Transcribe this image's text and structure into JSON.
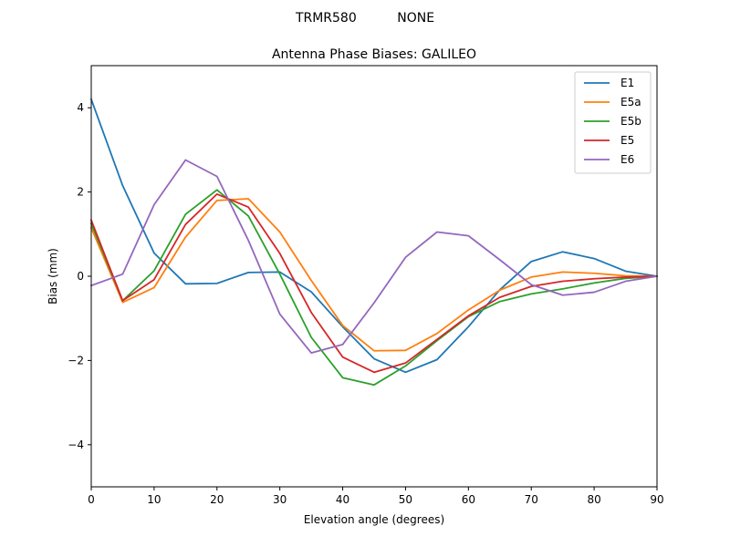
{
  "figure": {
    "suptitle": "TRMR580          NONE"
  },
  "chart_data": {
    "type": "line",
    "title": "Antenna Phase Biases: GALILEO",
    "xlabel": "Elevation angle (degrees)",
    "ylabel": "Bias (mm)",
    "xlim": [
      0,
      90
    ],
    "ylim": [
      -5,
      5
    ],
    "xticks": [
      0,
      10,
      20,
      30,
      40,
      50,
      60,
      70,
      80,
      90
    ],
    "yticks": [
      4,
      2,
      0,
      -2,
      -4
    ],
    "ytick_labels": [
      "4",
      "2",
      "0",
      "−2",
      "−4"
    ],
    "grid": false,
    "legend_placement": "top-right",
    "x": [
      0,
      5,
      10,
      15,
      20,
      25,
      30,
      35,
      40,
      45,
      50,
      55,
      60,
      65,
      70,
      75,
      80,
      85,
      90
    ],
    "series": [
      {
        "name": "E1",
        "color": "#1f77b4",
        "values": [
          4.2,
          2.15,
          0.55,
          -0.18,
          -0.17,
          0.09,
          0.1,
          -0.37,
          -1.2,
          -1.96,
          -2.28,
          -1.98,
          -1.2,
          -0.32,
          0.35,
          0.58,
          0.42,
          0.12,
          0.0
        ]
      },
      {
        "name": "E5a",
        "color": "#ff7f0e",
        "values": [
          1.15,
          -0.62,
          -0.27,
          0.93,
          1.8,
          1.84,
          1.05,
          -0.1,
          -1.17,
          -1.77,
          -1.76,
          -1.36,
          -0.8,
          -0.33,
          -0.02,
          0.1,
          0.07,
          0.01,
          0.0
        ]
      },
      {
        "name": "E5b",
        "color": "#2ca02c",
        "values": [
          1.25,
          -0.58,
          0.13,
          1.47,
          2.05,
          1.43,
          0.05,
          -1.45,
          -2.41,
          -2.58,
          -2.13,
          -1.53,
          -0.96,
          -0.6,
          -0.42,
          -0.3,
          -0.16,
          -0.05,
          0.0
        ]
      },
      {
        "name": "E5",
        "color": "#d62728",
        "values": [
          1.33,
          -0.58,
          -0.08,
          1.23,
          1.95,
          1.64,
          0.54,
          -0.86,
          -1.92,
          -2.28,
          -2.06,
          -1.5,
          -0.94,
          -0.5,
          -0.24,
          -0.12,
          -0.06,
          -0.02,
          0.0
        ]
      },
      {
        "name": "E6",
        "color": "#9467bd",
        "values": [
          -0.22,
          0.05,
          1.7,
          2.76,
          2.37,
          0.85,
          -0.9,
          -1.82,
          -1.62,
          -0.63,
          0.45,
          1.05,
          0.96,
          0.39,
          -0.2,
          -0.45,
          -0.38,
          -0.12,
          0.0
        ]
      }
    ]
  }
}
